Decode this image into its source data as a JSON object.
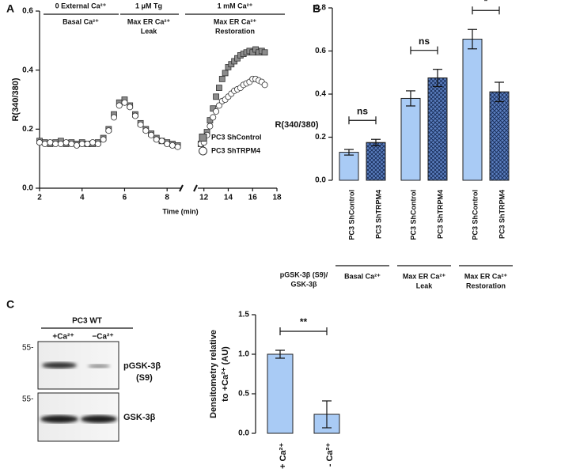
{
  "chart_data": [
    {
      "type": "scatter",
      "panel": "A",
      "ylabel": "R(340/380)",
      "xlabel": "Time (min)",
      "phases": [
        {
          "top": "0 External Ca²⁺",
          "bottom": [
            "Basal Ca²⁺"
          ]
        },
        {
          "top": "1 μM Tg",
          "bottom": [
            "Max ER Ca²⁺",
            "Leak"
          ]
        },
        {
          "top": "1 mM Ca²⁺",
          "bottom": [
            "Max ER Ca²⁺",
            "Restoration"
          ]
        }
      ],
      "x": [
        2.0,
        2.25,
        2.5,
        2.75,
        3.0,
        3.25,
        3.5,
        3.75,
        4.0,
        4.25,
        4.5,
        4.75,
        5.0,
        5.25,
        5.5,
        5.75,
        6.0,
        6.25,
        6.5,
        6.75,
        7.0,
        7.25,
        7.5,
        7.75,
        8.0,
        8.25,
        8.5,
        11.75,
        12.0,
        12.25,
        12.5,
        12.75,
        13.0,
        13.25,
        13.5,
        13.75,
        14.0,
        14.25,
        14.5,
        14.75,
        15.0,
        15.25,
        15.5,
        15.75,
        16.0,
        16.25,
        16.5,
        16.75,
        17.0
      ],
      "series": [
        {
          "name": "PC3 ShControl",
          "color": "#8c8c8c",
          "marker": "square",
          "values": [
            0.16,
            0.155,
            0.15,
            0.155,
            0.16,
            0.15,
            0.155,
            0.15,
            0.155,
            0.15,
            0.15,
            0.155,
            0.17,
            0.2,
            0.25,
            0.29,
            0.3,
            0.28,
            0.25,
            0.22,
            0.2,
            0.185,
            0.17,
            0.16,
            0.155,
            0.15,
            0.145,
            0.15,
            0.16,
            0.19,
            0.23,
            0.27,
            0.31,
            0.34,
            0.37,
            0.39,
            0.41,
            0.42,
            0.43,
            0.44,
            0.45,
            0.455,
            0.46,
            0.465,
            0.46,
            0.47,
            0.46,
            0.465,
            0.46
          ]
        },
        {
          "name": "PC3 ShTRPM4",
          "color": "#ffffff",
          "marker": "circle",
          "values": [
            0.155,
            0.15,
            0.155,
            0.15,
            0.15,
            0.155,
            0.15,
            0.145,
            0.15,
            0.15,
            0.155,
            0.15,
            0.165,
            0.195,
            0.24,
            0.28,
            0.29,
            0.275,
            0.245,
            0.215,
            0.195,
            0.18,
            0.165,
            0.16,
            0.15,
            0.145,
            0.14,
            0.15,
            0.155,
            0.18,
            0.21,
            0.24,
            0.26,
            0.28,
            0.295,
            0.3,
            0.31,
            0.32,
            0.33,
            0.335,
            0.34,
            0.35,
            0.355,
            0.36,
            0.37,
            0.37,
            0.365,
            0.36,
            0.35
          ]
        }
      ],
      "xlim": [
        [
          2,
          8.7
        ],
        [
          11.5,
          18
        ]
      ],
      "xticks": [
        2,
        4,
        6,
        8,
        12,
        14,
        16,
        18
      ],
      "ylim": [
        0,
        0.6
      ],
      "yticks": [
        {
          "value": 0,
          "label": "0.0"
        },
        0.2,
        0.4,
        0.6
      ],
      "grid": false
    },
    {
      "type": "bar",
      "panel": "B",
      "ylabel": "R(340/380)",
      "categories": [
        "PC3 ShControl",
        "PC3 ShTRPM4",
        "PC3 ShControl",
        "PC3 ShTRPM4",
        "PC3 ShControl",
        "PC3 ShTRPM4"
      ],
      "values": [
        0.13,
        0.175,
        0.38,
        0.475,
        0.655,
        0.41
      ],
      "errors": [
        0.013,
        0.015,
        0.035,
        0.04,
        0.045,
        0.045
      ],
      "colors": [
        "#a9cbf5",
        "#5b7fc0",
        "#a9cbf5",
        "#5b7fc0",
        "#a9cbf5",
        "#5b7fc0"
      ],
      "hatched": [
        false,
        true,
        false,
        true,
        false,
        true
      ],
      "groups": [
        {
          "label": [
            "Basal Ca²⁺"
          ],
          "count": 2
        },
        {
          "label": [
            "Max ER Ca²⁺",
            "Leak"
          ],
          "count": 2
        },
        {
          "label": [
            "Max ER Ca²⁺",
            "Restoration"
          ],
          "count": 2
        }
      ],
      "comparisons": [
        {
          "label": "ns",
          "bars": [
            0,
            1
          ]
        },
        {
          "label": "ns",
          "bars": [
            2,
            3
          ]
        },
        {
          "label": "*",
          "bars": [
            4,
            5
          ]
        }
      ],
      "ylim": [
        0,
        0.8
      ],
      "yticks": [
        {
          "value": 0,
          "label": "0.0"
        },
        0.2,
        0.4,
        0.6,
        0.8
      ],
      "grid": false
    },
    {
      "type": "bar",
      "title": [
        "pGSK-3β  (S9)/",
        "GSK-3β"
      ],
      "ylabel": [
        "Densitometry relative",
        "to +Ca²⁺ (AU)"
      ],
      "categories": [
        "+ Ca²⁺",
        "- Ca²⁺"
      ],
      "values": [
        1.0,
        0.24
      ],
      "errors": [
        0.05,
        0.17
      ],
      "colors": [
        "#a9cbf5",
        "#a9cbf5"
      ],
      "hatched": [
        false,
        false
      ],
      "comparisons": [
        {
          "label": "**",
          "bars": [
            0,
            1
          ]
        }
      ],
      "ylim": [
        0,
        1.5
      ],
      "yticks": [
        {
          "value": 0,
          "label": "0.0"
        },
        0.5,
        {
          "value": 1,
          "label": "1.0"
        },
        1.5
      ],
      "grid": false
    }
  ],
  "blot": {
    "panel": "C",
    "title": "PC3 WT",
    "lanes": [
      "+Ca²⁺",
      "−Ca²⁺"
    ],
    "markers": [
      "55-",
      "55-"
    ],
    "rows": [
      [
        "pGSK-3β",
        "(S9)"
      ],
      [
        "GSK-3β"
      ]
    ]
  }
}
